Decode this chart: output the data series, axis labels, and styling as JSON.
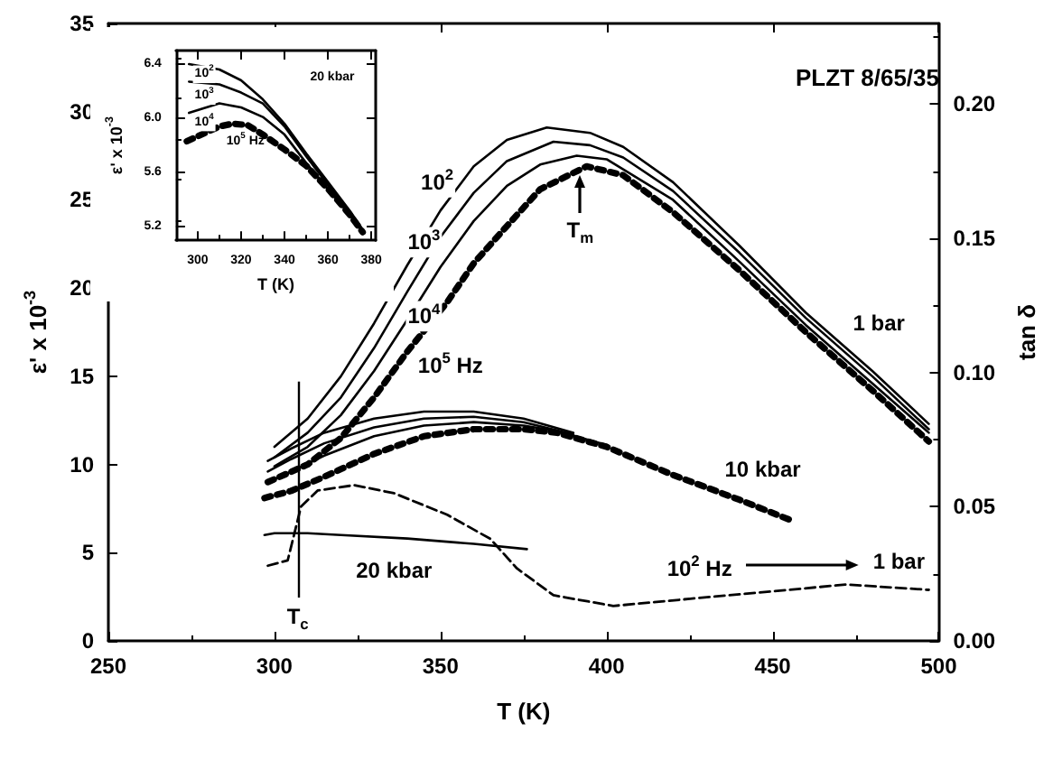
{
  "chart_data": [
    {
      "type": "line",
      "title": "PLZT 8/65/35",
      "xlabel": "T (K)",
      "ylabel": "ε' x 10$^{-3}$",
      "y2label": "tan δ",
      "xlim": [
        250,
        500
      ],
      "xticks": [
        250,
        300,
        350,
        400,
        450,
        500
      ],
      "ylim": [
        0,
        35
      ],
      "yticks": [
        0,
        5,
        10,
        15,
        20,
        25,
        30,
        35
      ],
      "y2lim": [
        0,
        0.23
      ],
      "y2ticks": [
        {
          "value": 0,
          "label": "0.00"
        },
        0.05,
        {
          "value": 0.1,
          "label": "0.10"
        },
        0.15,
        {
          "value": 0.2,
          "label": "0.20"
        }
      ],
      "grid": false,
      "marker": "none",
      "line_style": "solid",
      "ref_lines": [
        {
          "axis": "x",
          "value": 307,
          "label": "T$_{c}$"
        }
      ],
      "annotations": [
        "T$_{m}$",
        "1 bar",
        "10 kbar",
        "20 kbar",
        "10$^{2}$ Hz",
        "1 bar",
        "10$^{2}$",
        "10$^{3}$",
        "10$^{4}$",
        "10$^{5}$ Hz"
      ],
      "series": [
        {
          "color": "#000000",
          "x": [
            300,
            310,
            320,
            330,
            340,
            350,
            360,
            370,
            382,
            395,
            405,
            420,
            440,
            460,
            480,
            497
          ],
          "values": [
            11.0,
            12.6,
            15.0,
            18.0,
            21.3,
            24.4,
            26.9,
            28.4,
            29.1,
            28.8,
            28.0,
            26.0,
            22.4,
            18.6,
            15.3,
            12.3
          ]
        },
        {
          "color": "#000000",
          "x": [
            300,
            310,
            320,
            330,
            340,
            350,
            360,
            370,
            384,
            395,
            405,
            420,
            440,
            460,
            480,
            497
          ],
          "values": [
            10.4,
            11.8,
            13.8,
            16.6,
            19.8,
            22.9,
            25.4,
            27.2,
            28.3,
            28.1,
            27.4,
            25.5,
            22.0,
            18.3,
            15.0,
            12.0
          ]
        },
        {
          "color": "#000000",
          "x": [
            300,
            310,
            320,
            330,
            340,
            350,
            360,
            370,
            380,
            391,
            400,
            420,
            440,
            460,
            480,
            497
          ],
          "values": [
            9.9,
            11.0,
            12.8,
            15.3,
            18.2,
            21.2,
            23.8,
            25.8,
            27.0,
            27.5,
            27.3,
            25.0,
            21.5,
            17.9,
            14.6,
            11.8
          ]
        },
        {
          "color": "#000000",
          "line_style": "dotted",
          "x": [
            298,
            310,
            320,
            330,
            340,
            352,
            360,
            368,
            380,
            394,
            405,
            420,
            440,
            460,
            480,
            497
          ],
          "values": [
            9.0,
            10.0,
            11.5,
            13.8,
            16.4,
            19.2,
            21.4,
            23.1,
            25.6,
            26.9,
            26.4,
            24.3,
            21.0,
            17.5,
            14.2,
            11.3
          ]
        },
        {
          "color": "#000000",
          "x": [
            298,
            305,
            315,
            330,
            345,
            360,
            375,
            390
          ],
          "values": [
            10.2,
            10.9,
            11.8,
            12.6,
            13.0,
            13.0,
            12.6,
            11.8
          ]
        },
        {
          "color": "#000000",
          "x": [
            298,
            305,
            315,
            330,
            345,
            360,
            375,
            390
          ],
          "values": [
            9.6,
            10.3,
            11.2,
            12.1,
            12.6,
            12.7,
            12.4,
            11.7
          ]
        },
        {
          "color": "#000000",
          "x": [
            298,
            305,
            315,
            330,
            345,
            360,
            375,
            385,
            400
          ],
          "values": [
            9.0,
            9.6,
            10.5,
            11.6,
            12.2,
            12.4,
            12.2,
            11.9,
            11.1
          ]
        },
        {
          "color": "#000000",
          "line_style": "dotted",
          "x": [
            297,
            305,
            315,
            330,
            345,
            360,
            375,
            385,
            400,
            420,
            440,
            456
          ],
          "values": [
            8.1,
            8.5,
            9.3,
            10.6,
            11.6,
            12.0,
            12.0,
            11.8,
            11.0,
            9.4,
            8.0,
            6.8
          ]
        },
        {
          "color": "#000000",
          "x": [
            297,
            300,
            310,
            320,
            340,
            360,
            376
          ],
          "values": [
            6.0,
            6.1,
            6.1,
            6.0,
            5.8,
            5.5,
            5.2
          ]
        },
        {
          "color": "#000000",
          "axis": "y2",
          "line_style": "dashed",
          "x": [
            298,
            304,
            308,
            313,
            324,
            336,
            352,
            365,
            373,
            384,
            402,
            428,
            455,
            472,
            497
          ],
          "values": [
            0.028,
            0.03,
            0.05,
            0.056,
            0.058,
            0.055,
            0.047,
            0.038,
            0.027,
            0.017,
            0.013,
            0.016,
            0.019,
            0.021,
            0.019
          ]
        }
      ]
    },
    {
      "type": "line",
      "xlabel": "T (K)",
      "ylabel": "ε' x 10$^{-3}$",
      "xlim": [
        290,
        382
      ],
      "xticks": [
        300,
        320,
        340,
        360,
        380
      ],
      "ylim": [
        5.1,
        6.5
      ],
      "yticks": [
        5.2,
        5.6,
        {
          "value": 6,
          "label": "6.0"
        },
        6.4
      ],
      "grid": false,
      "marker": "none",
      "line_style": "solid",
      "annotations": [
        "20 kbar",
        "10$^{2}$",
        "10$^{3}$",
        "10$^{4}$",
        "10$^{5}$ Hz"
      ],
      "series": [
        {
          "color": "#000000",
          "x": [
            296,
            310,
            320,
            330,
            340,
            350,
            360,
            370,
            376
          ],
          "values": [
            6.4,
            6.36,
            6.28,
            6.14,
            5.96,
            5.74,
            5.53,
            5.32,
            5.18
          ]
        },
        {
          "color": "#000000",
          "x": [
            296,
            310,
            320,
            330,
            340,
            350,
            360,
            370,
            376
          ],
          "values": [
            6.27,
            6.25,
            6.19,
            6.11,
            5.94,
            5.72,
            5.51,
            5.3,
            5.17
          ]
        },
        {
          "color": "#000000",
          "x": [
            296,
            310,
            320,
            330,
            340,
            350,
            360,
            370,
            376
          ],
          "values": [
            6.04,
            6.11,
            6.08,
            6.01,
            5.88,
            5.67,
            5.48,
            5.29,
            5.16
          ]
        },
        {
          "color": "#000000",
          "line_style": "dotted",
          "x": [
            295,
            310,
            316,
            323,
            330,
            340,
            350,
            360,
            370,
            376
          ],
          "values": [
            5.83,
            5.94,
            5.96,
            5.95,
            5.88,
            5.77,
            5.65,
            5.48,
            5.29,
            5.16
          ]
        }
      ]
    }
  ]
}
